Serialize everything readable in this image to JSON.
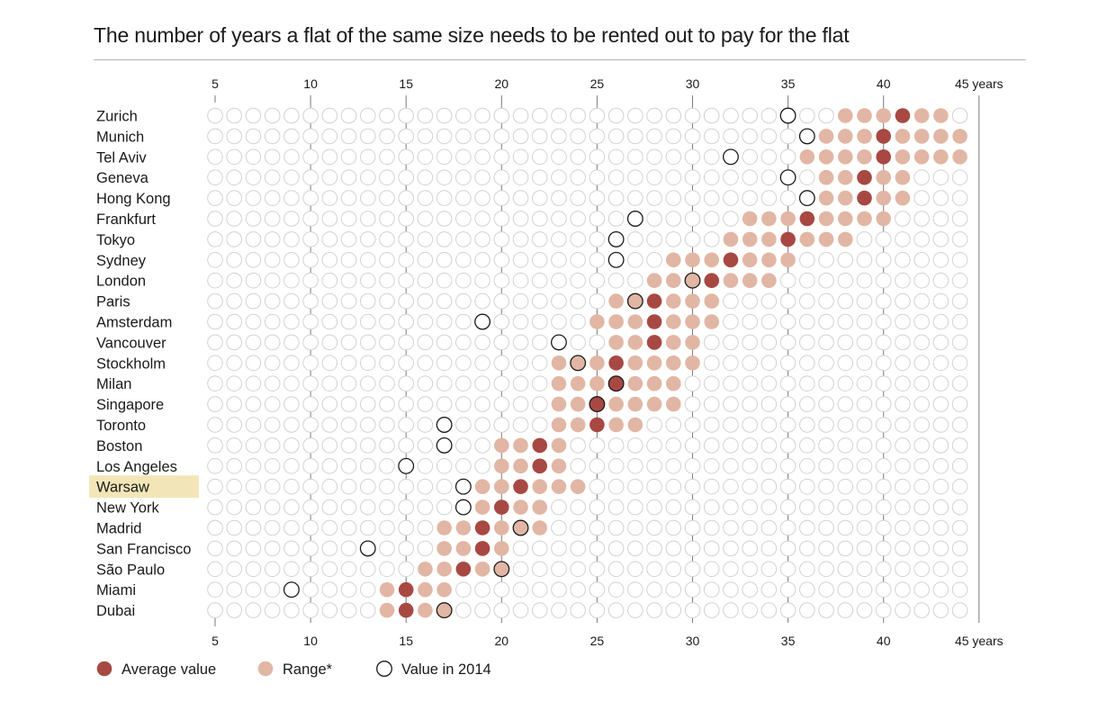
{
  "chart_data": {
    "type": "dot-matrix",
    "title": "The number of years a flat of the same size needs to be rented out to pay for the flat",
    "x_ticks": [
      {
        "value": 5,
        "label": "5"
      },
      {
        "value": 10,
        "label": "10"
      },
      {
        "value": 15,
        "label": "15"
      },
      {
        "value": 20,
        "label": "20"
      },
      {
        "value": 25,
        "label": "25"
      },
      {
        "value": 30,
        "label": "30"
      },
      {
        "value": 35,
        "label": "35"
      },
      {
        "value": 40,
        "label": "40"
      },
      {
        "value": 45,
        "label": "45 years"
      }
    ],
    "xlim": [
      5,
      45
    ],
    "highlighted_city": "Warsaw",
    "legend": {
      "average": "Average value",
      "range": "Range*",
      "value2014": "Value in 2014"
    },
    "colors": {
      "average": "#a84842",
      "range": "#e2b6a4",
      "empty_stroke": "#d2d2d2",
      "value2014_stroke": "#1a1a1a",
      "highlight": "#f2e6b8",
      "gridline": "#7a7a7a"
    },
    "cities": [
      {
        "name": "Zurich",
        "range": [
          38,
          43
        ],
        "average": 41,
        "value_2014": 35
      },
      {
        "name": "Munich",
        "range": [
          37,
          44
        ],
        "average": 40,
        "value_2014": 36
      },
      {
        "name": "Tel Aviv",
        "range": [
          36,
          44
        ],
        "average": 40,
        "value_2014": 32
      },
      {
        "name": "Geneva",
        "range": [
          37,
          41
        ],
        "average": 39,
        "value_2014": 35
      },
      {
        "name": "Hong Kong",
        "range": [
          37,
          41
        ],
        "average": 39,
        "value_2014": 36
      },
      {
        "name": "Frankfurt",
        "range": [
          33,
          40
        ],
        "average": 36,
        "value_2014": 27
      },
      {
        "name": "Tokyo",
        "range": [
          32,
          38
        ],
        "average": 35,
        "value_2014": 26
      },
      {
        "name": "Sydney",
        "range": [
          29,
          35
        ],
        "average": 32,
        "value_2014": 26
      },
      {
        "name": "London",
        "range": [
          28,
          34
        ],
        "average": 31,
        "value_2014": 30
      },
      {
        "name": "Paris",
        "range": [
          26,
          31
        ],
        "average": 28,
        "value_2014": 27
      },
      {
        "name": "Amsterdam",
        "range": [
          25,
          31
        ],
        "average": 28,
        "value_2014": 19
      },
      {
        "name": "Vancouver",
        "range": [
          26,
          30
        ],
        "average": 28,
        "value_2014": 23
      },
      {
        "name": "Stockholm",
        "range": [
          23,
          30
        ],
        "average": 26,
        "value_2014": 24
      },
      {
        "name": "Milan",
        "range": [
          23,
          29
        ],
        "average": 26,
        "value_2014": 26
      },
      {
        "name": "Singapore",
        "range": [
          23,
          29
        ],
        "average": 25,
        "value_2014": 25
      },
      {
        "name": "Toronto",
        "range": [
          23,
          27
        ],
        "average": 25,
        "value_2014": 17
      },
      {
        "name": "Boston",
        "range": [
          20,
          23
        ],
        "average": 22,
        "value_2014": 17
      },
      {
        "name": "Los Angeles",
        "range": [
          20,
          23
        ],
        "average": 22,
        "value_2014": 15
      },
      {
        "name": "Warsaw",
        "range": [
          19,
          24
        ],
        "average": 21,
        "value_2014": 18
      },
      {
        "name": "New York",
        "range": [
          19,
          22
        ],
        "average": 20,
        "value_2014": 18
      },
      {
        "name": "Madrid",
        "range": [
          17,
          22
        ],
        "average": 19,
        "value_2014": 21
      },
      {
        "name": "San Francisco",
        "range": [
          17,
          20
        ],
        "average": 19,
        "value_2014": 13
      },
      {
        "name": "São Paulo",
        "range": [
          16,
          20
        ],
        "average": 18,
        "value_2014": 20
      },
      {
        "name": "Miami",
        "range": [
          14,
          17
        ],
        "average": 15,
        "value_2014": 9
      },
      {
        "name": "Dubai",
        "range": [
          14,
          17
        ],
        "average": 15,
        "value_2014": 17
      }
    ]
  }
}
